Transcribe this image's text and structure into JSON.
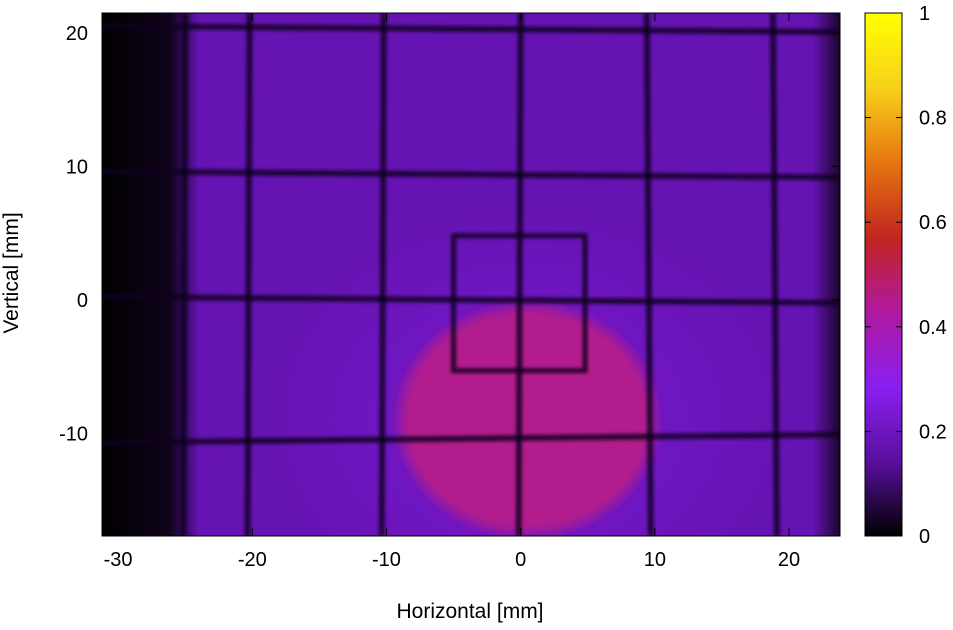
{
  "chart_data": {
    "type": "heatmap",
    "title": "",
    "xlabel": "Horizontal [mm]",
    "ylabel": "Vertical [mm]",
    "xlim": [
      -31.2,
      23.8
    ],
    "ylim": [
      -17.7,
      21.5
    ],
    "x_ticks": [
      -30,
      -20,
      -10,
      0,
      10,
      20
    ],
    "y_ticks": [
      -10,
      0,
      10,
      20
    ],
    "colorbar": {
      "range": [
        0,
        1
      ],
      "ticks": [
        0,
        0.2,
        0.4,
        0.6,
        0.8,
        1
      ],
      "tick_labels": [
        "0",
        "0.2",
        "0.4",
        "0.6",
        "0.8",
        "1"
      ],
      "colormap": [
        "#000000",
        "#5a0f9e",
        "#8a1ff0",
        "#b0189f",
        "#c2261f",
        "#e6760f",
        "#f7d11a",
        "#ffff00"
      ]
    },
    "background_intensity": 0.18,
    "grid_wires": {
      "vertical_x": [
        -25,
        -20.2,
        -10.2,
        0,
        9.4,
        18.8
      ],
      "horizontal_y": [
        20.3,
        9.4,
        0,
        -10.4
      ]
    },
    "square_frame": {
      "x": [
        -5,
        4.8
      ],
      "y": [
        -5.3,
        4.8
      ]
    },
    "beam_spot": {
      "center": [
        0.5,
        -9
      ],
      "radius_x": 9.5,
      "radius_y": 8.5,
      "intensity": 0.45
    },
    "dark_edges": {
      "left_below_x": -25,
      "right_above_x": 22.5
    }
  }
}
